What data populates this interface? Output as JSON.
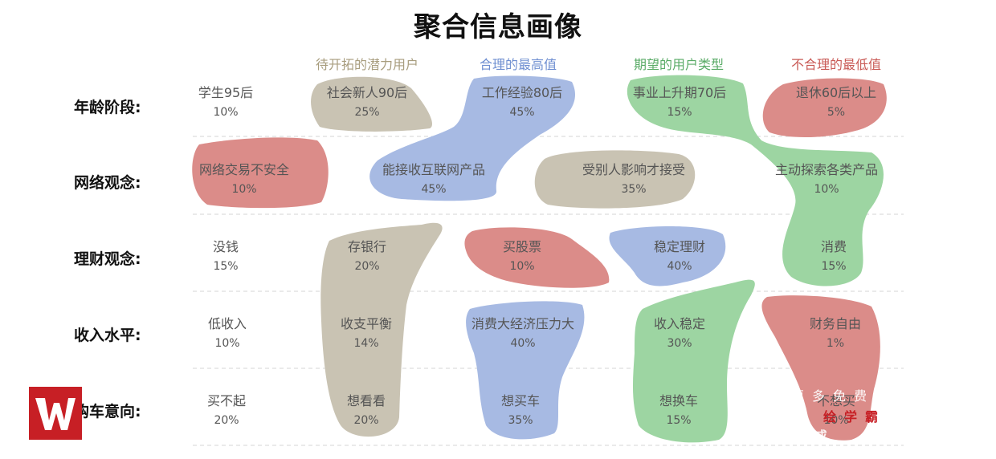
{
  "title": "聚合信息画像",
  "columns": [
    {
      "label": "待开拓的潜力用户",
      "color": "#a89d7e"
    },
    {
      "label": "合理的最高值",
      "color": "#6f8fd1"
    },
    {
      "label": "期望的用户类型",
      "color": "#5aab67"
    },
    {
      "label": "不合理的最低值",
      "color": "#c95a56"
    }
  ],
  "rows": [
    {
      "label": "年龄阶段:",
      "cells": [
        {
          "name": "学生95后",
          "pct": "10%"
        },
        {
          "name": "社会新人90后",
          "pct": "25%"
        },
        {
          "name": "工作经验80后",
          "pct": "45%"
        },
        {
          "name": "事业上升期70后",
          "pct": "15%"
        },
        {
          "name": "退休60后以上",
          "pct": "5%"
        }
      ]
    },
    {
      "label": "网络观念:",
      "cells": [
        {
          "name": "网络交易不安全",
          "pct": "10%"
        },
        {
          "name": "能接收互联网产品",
          "pct": "45%"
        },
        {
          "name": "受别人影响才接受",
          "pct": "35%"
        },
        {
          "name": "主动探索各类产品",
          "pct": "10%"
        }
      ]
    },
    {
      "label": "理财观念:",
      "cells": [
        {
          "name": "没钱",
          "pct": "15%"
        },
        {
          "name": "存银行",
          "pct": "20%"
        },
        {
          "name": "买股票",
          "pct": "10%"
        },
        {
          "name": "稳定理财",
          "pct": "40%"
        },
        {
          "name": "消费",
          "pct": "15%"
        }
      ]
    },
    {
      "label": "收入水平:",
      "cells": [
        {
          "name": "低收入",
          "pct": "10%"
        },
        {
          "name": "收支平衡",
          "pct": "14%"
        },
        {
          "name": "消费大经济压力大",
          "pct": "40%"
        },
        {
          "name": "收入稳定",
          "pct": "30%"
        },
        {
          "name": "财务自由",
          "pct": "1%"
        }
      ]
    },
    {
      "label": "购车意向:",
      "cells": [
        {
          "name": "买不起",
          "pct": "20%"
        },
        {
          "name": "想看看",
          "pct": "20%"
        },
        {
          "name": "想买车",
          "pct": "35%"
        },
        {
          "name": "想换车",
          "pct": "15%"
        },
        {
          "name": "不想买",
          "pct": "10%"
        }
      ]
    }
  ],
  "colors": {
    "tan": "#c9c3b3",
    "blue": "#a7bae3",
    "green": "#9dd5a2",
    "red": "#db8c89"
  },
  "watermark": {
    "line1": "更多免费",
    "line2": "绘学霸",
    "line3": "re或"
  },
  "logo_icon": "w-logo-icon"
}
